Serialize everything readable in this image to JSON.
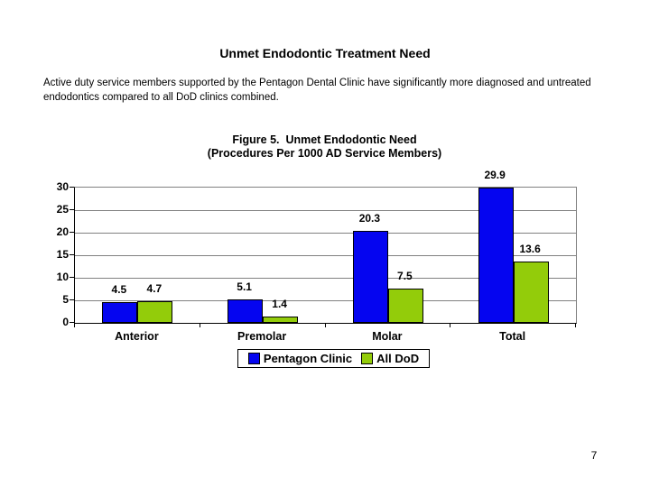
{
  "slide": {
    "title": "Unmet Endodontic Treatment Need",
    "body_lines": [
      "Active duty service members supported by the Pentagon Dental Clinic have significantly more diagnosed and untreated",
      "endodontics compared to all DoD clinics combined."
    ],
    "page_number": "7"
  },
  "chart_data": {
    "type": "bar",
    "title": "Figure 5.  Unmet Endodontic Need",
    "subtitle": "(Procedures Per 1000 AD Service Members)",
    "categories": [
      "Anterior",
      "Premolar",
      "Molar",
      "Total"
    ],
    "series": [
      {
        "name": "Pentagon Clinic",
        "color": "#0505F0",
        "values": [
          4.5,
          5.1,
          20.3,
          29.9
        ]
      },
      {
        "name": "All DoD",
        "color": "#93CC0A",
        "values": [
          4.7,
          1.4,
          7.5,
          13.6
        ]
      }
    ],
    "ylim": [
      0,
      30
    ],
    "yticks": [
      0,
      5,
      10,
      15,
      20,
      25,
      30
    ],
    "grid": true,
    "legend_position": "bottom",
    "data_labels": true,
    "axis_color": "#000000",
    "gridline_color": "#808080"
  }
}
